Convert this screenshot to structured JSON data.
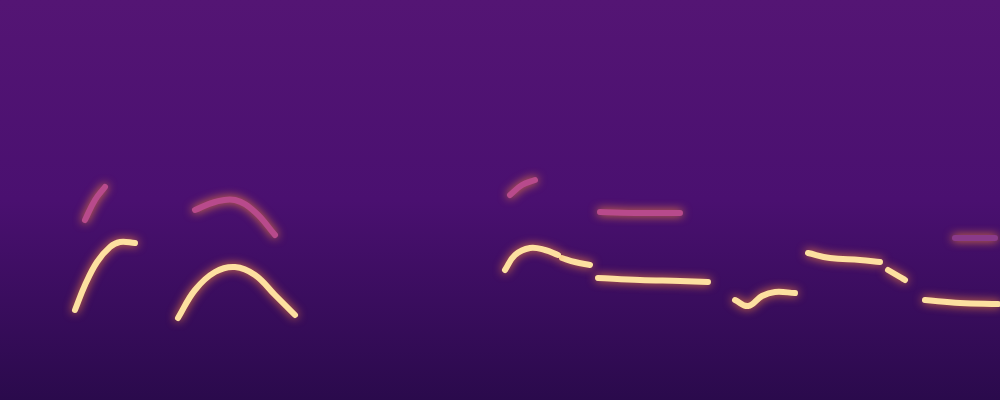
{
  "chart_data": {
    "type": "line",
    "xlim": [
      0,
      1000
    ],
    "ylim": [
      0,
      400
    ],
    "grid": false,
    "tick_labels": false,
    "series": [
      {
        "color": "#fde0a0",
        "x": [
          75,
          85,
          97,
          110,
          120,
          135
        ],
        "values": [
          90,
          115,
          138,
          153,
          158,
          157
        ]
      },
      {
        "color": "#b84a8c",
        "x": [
          85,
          95,
          105
        ],
        "values": [
          180,
          200,
          213
        ]
      },
      {
        "color": "#fde0a0",
        "x": [
          178,
          195,
          215,
          235,
          255,
          275,
          295
        ],
        "values": [
          82,
          110,
          128,
          133,
          125,
          105,
          85
        ]
      },
      {
        "color": "#b84a8c",
        "x": [
          195,
          215,
          235,
          255,
          275
        ],
        "values": [
          190,
          198,
          200,
          188,
          165
        ]
      },
      {
        "color": "#fde0a0",
        "x": [
          505,
          515,
          530,
          545,
          558
        ],
        "values": [
          130,
          145,
          152,
          150,
          145
        ]
      },
      {
        "color": "#b84a8c",
        "x": [
          510,
          522,
          535
        ],
        "values": [
          205,
          215,
          220
        ]
      },
      {
        "color": "#fde0a0",
        "x": [
          562,
          575,
          590
        ],
        "values": [
          142,
          138,
          135
        ]
      },
      {
        "color": "#fde0a0",
        "x": [
          598,
          640,
          680,
          708
        ],
        "values": [
          122,
          120,
          119,
          118
        ]
      },
      {
        "color": "#b84a8c",
        "x": [
          600,
          640,
          680
        ],
        "values": [
          188,
          187,
          187
        ]
      },
      {
        "color": "#fde0a0",
        "x": [
          735,
          748,
          762,
          775,
          795
        ],
        "values": [
          100,
          94,
          104,
          108,
          107
        ]
      },
      {
        "color": "#fde0a0",
        "x": [
          808,
          830,
          860,
          880
        ],
        "values": [
          147,
          142,
          140,
          138
        ]
      },
      {
        "color": "#fde0a0",
        "x": [
          888,
          900,
          905
        ],
        "values": [
          130,
          123,
          120
        ]
      },
      {
        "color": "#fde0a0",
        "x": [
          925,
          960,
          998
        ],
        "values": [
          100,
          97,
          96
        ]
      },
      {
        "color": "#8a3a8a",
        "x": [
          955,
          995
        ],
        "values": [
          162,
          162
        ]
      }
    ]
  }
}
